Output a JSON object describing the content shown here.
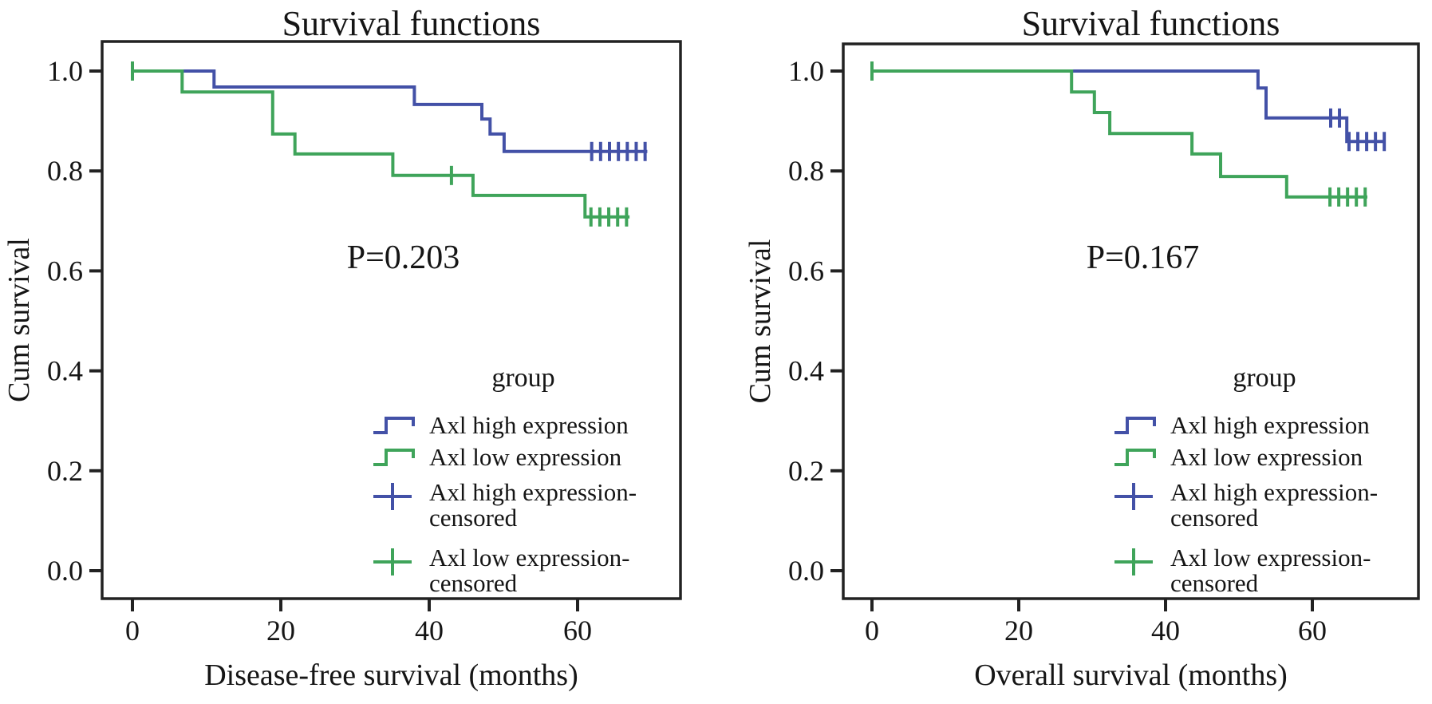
{
  "figure": {
    "background": "#ffffff",
    "text_color": "#151515",
    "axis_color": "#222222",
    "blue": "#4351a7",
    "green": "#3fa45a"
  },
  "chart_data": [
    {
      "type": "line",
      "subtype": "kaplan-meier-step",
      "title": "Survival functions",
      "p_value_label": "P=0.203",
      "xlabel": "Disease-free survival (months)",
      "ylabel": "Cum survival",
      "x_ticks": [
        0,
        20,
        40,
        60
      ],
      "y_ticks": [
        1.0,
        0.8,
        0.6,
        0.4,
        0.2,
        0.0
      ],
      "xlim": [
        -4,
        74
      ],
      "ylim": [
        -0.056,
        1.058
      ],
      "grid": false,
      "legend_position": "inside-right",
      "legend_title": "group",
      "legend_items": [
        {
          "lines": [
            "Axl high expression"
          ],
          "symbol": "step",
          "color": "#4351a7"
        },
        {
          "lines": [
            "Axl low expression"
          ],
          "symbol": "step",
          "color": "#3fa45a"
        },
        {
          "lines": [
            "Axl high expression-",
            "censored"
          ],
          "symbol": "plus",
          "color": "#4351a7"
        },
        {
          "lines": [
            "Axl low expression-",
            "censored"
          ],
          "symbol": "plus",
          "color": "#3fa45a"
        }
      ],
      "series": [
        {
          "name": "Axl high expression",
          "color": "#4351a7",
          "steps": [
            [
              0,
              1.0
            ],
            [
              11,
              1.0
            ],
            [
              11,
              0.968
            ],
            [
              38,
              0.968
            ],
            [
              38,
              0.933
            ],
            [
              47.1,
              0.933
            ],
            [
              47.1,
              0.904
            ],
            [
              48.2,
              0.904
            ],
            [
              48.2,
              0.874
            ],
            [
              50.1,
              0.874
            ],
            [
              50.1,
              0.839
            ],
            [
              69.4,
              0.839
            ]
          ],
          "censored": [
            [
              61.9,
              0.839
            ],
            [
              63.1,
              0.839
            ],
            [
              64.3,
              0.839
            ],
            [
              65.5,
              0.839
            ],
            [
              66.7,
              0.839
            ],
            [
              67.9,
              0.839
            ],
            [
              69.1,
              0.839
            ]
          ]
        },
        {
          "name": "Axl low expression",
          "color": "#3fa45a",
          "steps": [
            [
              0,
              1.0
            ],
            [
              6.7,
              1.0
            ],
            [
              6.7,
              0.958
            ],
            [
              18.9,
              0.958
            ],
            [
              18.9,
              0.874
            ],
            [
              21.9,
              0.874
            ],
            [
              21.9,
              0.834
            ],
            [
              35.1,
              0.834
            ],
            [
              35.1,
              0.791
            ],
            [
              45.9,
              0.791
            ],
            [
              45.9,
              0.751
            ],
            [
              61.0,
              0.751
            ],
            [
              61.0,
              0.708
            ],
            [
              67.0,
              0.708
            ]
          ],
          "censored": [
            [
              0,
              1.0
            ],
            [
              43,
              0.791
            ],
            [
              61.8,
              0.708
            ],
            [
              63.0,
              0.708
            ],
            [
              64.2,
              0.708
            ],
            [
              65.4,
              0.708
            ],
            [
              66.6,
              0.708
            ]
          ]
        }
      ]
    },
    {
      "type": "line",
      "subtype": "kaplan-meier-step",
      "title": "Survival functions",
      "p_value_label": "P=0.167",
      "xlabel": "Overall survival (months)",
      "ylabel": "Cum survival",
      "x_ticks": [
        0,
        20,
        40,
        60
      ],
      "y_ticks": [
        1.0,
        0.8,
        0.6,
        0.4,
        0.2,
        0.0
      ],
      "xlim": [
        -4,
        74
      ],
      "ylim": [
        -0.056,
        1.058
      ],
      "grid": false,
      "legend_position": "inside-right",
      "legend_title": "group",
      "legend_items": [
        {
          "lines": [
            "Axl high expression"
          ],
          "symbol": "step",
          "color": "#4351a7"
        },
        {
          "lines": [
            "Axl low expression"
          ],
          "symbol": "step",
          "color": "#3fa45a"
        },
        {
          "lines": [
            "Axl high expression-",
            "censored"
          ],
          "symbol": "plus",
          "color": "#4351a7"
        },
        {
          "lines": [
            "Axl low expression-",
            "censored"
          ],
          "symbol": "plus",
          "color": "#3fa45a"
        }
      ],
      "series": [
        {
          "name": "Axl high expression",
          "color": "#4351a7",
          "steps": [
            [
              0,
              1.0
            ],
            [
              52.6,
              1.0
            ],
            [
              52.6,
              0.966
            ],
            [
              53.7,
              0.966
            ],
            [
              53.7,
              0.906
            ],
            [
              64.7,
              0.906
            ],
            [
              64.7,
              0.859
            ],
            [
              70.0,
              0.859
            ]
          ],
          "censored": [
            [
              62.5,
              0.906
            ],
            [
              63.7,
              0.906
            ],
            [
              65.0,
              0.859
            ],
            [
              66.2,
              0.859
            ],
            [
              67.4,
              0.859
            ],
            [
              68.6,
              0.859
            ],
            [
              69.8,
              0.859
            ]
          ]
        },
        {
          "name": "Axl low expression",
          "color": "#3fa45a",
          "steps": [
            [
              0,
              1.0
            ],
            [
              27.2,
              1.0
            ],
            [
              27.2,
              0.958
            ],
            [
              30.3,
              0.958
            ],
            [
              30.3,
              0.917
            ],
            [
              32.4,
              0.917
            ],
            [
              32.4,
              0.875
            ],
            [
              43.6,
              0.875
            ],
            [
              43.6,
              0.834
            ],
            [
              47.5,
              0.834
            ],
            [
              47.5,
              0.789
            ],
            [
              56.5,
              0.789
            ],
            [
              56.5,
              0.748
            ],
            [
              67.5,
              0.748
            ]
          ],
          "censored": [
            [
              0,
              1.0
            ],
            [
              62.4,
              0.748
            ],
            [
              63.6,
              0.748
            ],
            [
              64.8,
              0.748
            ],
            [
              66.0,
              0.748
            ],
            [
              67.2,
              0.748
            ]
          ]
        }
      ]
    }
  ]
}
